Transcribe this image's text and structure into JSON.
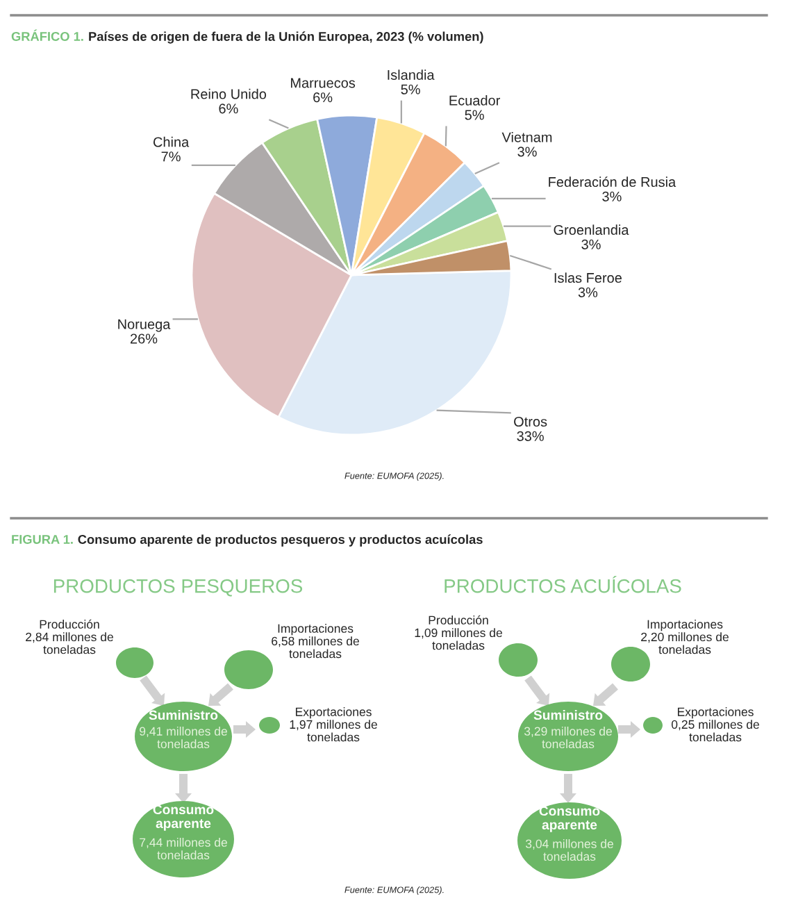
{
  "chart_data": [
    {
      "type": "pie",
      "title": "GRÁFICO 1. Países de origen de fuera de la Unión Europea, 2023 (% volumen)",
      "categories": [
        "Otros",
        "Noruega",
        "China",
        "Reino Unido",
        "Marruecos",
        "Islandia",
        "Ecuador",
        "Vietnam",
        "Federación de Rusia",
        "Groenlandia",
        "Islas Feroe"
      ],
      "values": [
        33,
        26,
        7,
        6,
        6,
        5,
        5,
        3,
        3,
        3,
        3
      ],
      "value_labels": [
        "33%",
        "26%",
        "7%",
        "6%",
        "6%",
        "5%",
        "5%",
        "3%",
        "3%",
        "3%",
        "3%"
      ],
      "colors": [
        "#dfebf7",
        "#e0c0c0",
        "#aeaaaa",
        "#a8d08d",
        "#8eaadb",
        "#ffe597",
        "#f4b183",
        "#bdd7ee",
        "#8ecfae",
        "#c9df9b",
        "#c09068"
      ],
      "annotations": [
        "Fuente: EUMOFA (2025)."
      ]
    },
    {
      "type": "other",
      "title": "FIGURA 1. Consumo aparente de productos pesqueros y productos acuícolas",
      "subtitle": "PRODUCTOS PESQUEROS",
      "categories": [
        "Producción",
        "Importaciones",
        "Suministro",
        "Exportaciones",
        "Consumo\naparente"
      ],
      "values": [
        2.84,
        6.58,
        9.41,
        1.97,
        7.44
      ],
      "value_labels": [
        "2,84 millones de\ntoneladas",
        "6,58 millones de\ntoneladas",
        "9,41 millones de\ntoneladas",
        "1,97 millones de\ntoneladas",
        "7,44 millones de\ntoneladas"
      ],
      "colors": [
        "#6cb766",
        "#6cb766",
        "#6cb766",
        "#6cb766",
        "#6cb766"
      ]
    },
    {
      "type": "other",
      "subtitle": "PRODUCTOS ACUÍCOLAS",
      "categories": [
        "Producción",
        "Importaciones",
        "Suministro",
        "Exportaciones",
        "Consumo\naparente"
      ],
      "values": [
        1.09,
        2.2,
        3.29,
        0.25,
        3.04
      ],
      "value_labels": [
        "1,09 millones de\ntoneladas",
        "2,20 millones de\ntoneladas",
        "3,29 millones de\ntoneladas",
        "0,25 millones de\ntoneladas",
        "3,04 millones de\ntoneladas"
      ],
      "colors": [
        "#6cb766",
        "#6cb766",
        "#6cb766",
        "#6cb766",
        "#6cb766"
      ],
      "annotations": [
        "Fuente: EUMOFA (2025)."
      ]
    }
  ]
}
